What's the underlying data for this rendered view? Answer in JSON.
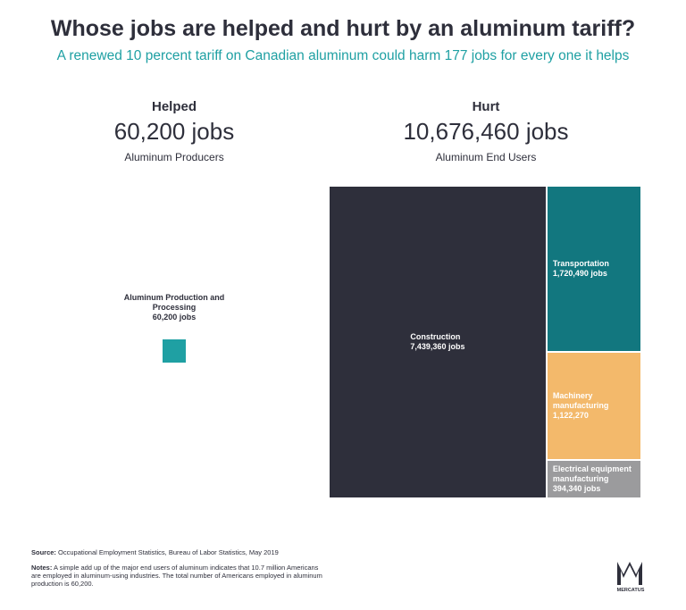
{
  "chart_data": {
    "type": "treemap",
    "title": "Whose jobs are helped and hurt by an aluminum tariff?",
    "subtitle": "A renewed 10 percent tariff on Canadian aluminum could harm 177 jobs for every one it helps",
    "groups": [
      {
        "heading": "Helped",
        "total": 60200,
        "total_label": "60,200 jobs",
        "caption": "Aluminum Producers",
        "categories": [
          "Aluminum Production and Processing"
        ],
        "values": [
          60200
        ],
        "value_labels": [
          "60,200 jobs"
        ],
        "colors": [
          "#1fa0a3"
        ]
      },
      {
        "heading": "Hurt",
        "total": 10676460,
        "total_label": "10,676,460 jobs",
        "caption": "Aluminum End Users",
        "categories": [
          "Construction",
          "Transportation",
          "Machinery manufacturing",
          "Electrical equipment manufacturing"
        ],
        "values": [
          7439360,
          1720490,
          1122270,
          394340
        ],
        "value_labels": [
          "7,439,360 jobs",
          "1,720,490 jobs",
          "1,122,270",
          "394,340 jobs"
        ],
        "colors": [
          "#2e2f3b",
          "#12777f",
          "#f3b96b",
          "#9b9b9d"
        ]
      }
    ],
    "source_label": "Source:",
    "source": "Occupational Employment Statistics, Bureau of Labor Statistics, May 2019",
    "notes_label": "Notes:",
    "notes": "A simple add up of the major end users of aluminum indicates that 10.7 million Americans are employed in aluminum-using industries. The total number of Americans employed in aluminum production is 60,200.",
    "logo": "MERCATUS"
  }
}
